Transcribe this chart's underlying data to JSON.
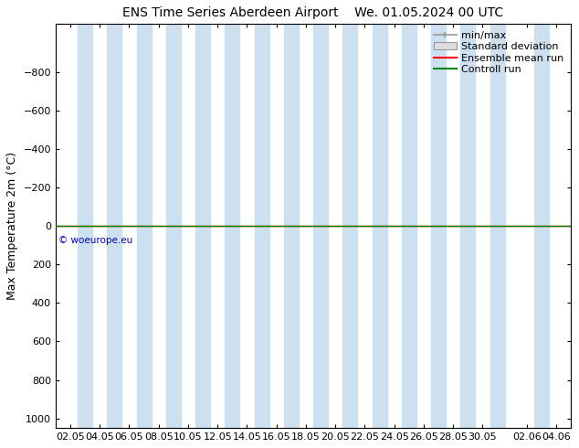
{
  "title_left": "ENS Time Series Aberdeen Airport",
  "title_right": "We. 01.05.2024 00 UTC",
  "ylabel": "Max Temperature 2m (°C)",
  "ylim_top": -1050,
  "ylim_bottom": 1050,
  "yticks": [
    -800,
    -600,
    -400,
    -200,
    0,
    200,
    400,
    600,
    800,
    1000
  ],
  "xtick_labels": [
    "02.05",
    "04.05",
    "06.05",
    "08.05",
    "10.05",
    "12.05",
    "14.05",
    "16.05",
    "18.05",
    "20.05",
    "22.05",
    "24.05",
    "26.05",
    "28.05",
    "30.05",
    "02.06",
    "04.06"
  ],
  "xtick_positions": [
    0,
    2,
    4,
    6,
    8,
    10,
    12,
    14,
    16,
    18,
    20,
    22,
    24,
    26,
    28,
    31,
    33
  ],
  "shaded_bands_x": [
    1,
    3,
    5,
    7,
    9,
    11,
    13,
    15,
    17,
    19,
    21,
    23,
    25,
    27,
    29,
    32
  ],
  "band_color": "#cce0f0",
  "control_run_y": 0,
  "control_run_color": "#008800",
  "ensemble_mean_color": "#ff0000",
  "watermark_text": "© woeurope.eu",
  "watermark_color": "#0000cc",
  "background_color": "#ffffff",
  "legend_entries": [
    "min/max",
    "Standard deviation",
    "Ensemble mean run",
    "Controll run"
  ],
  "title_fontsize": 10,
  "axis_label_fontsize": 9,
  "tick_fontsize": 8,
  "legend_fontsize": 8
}
